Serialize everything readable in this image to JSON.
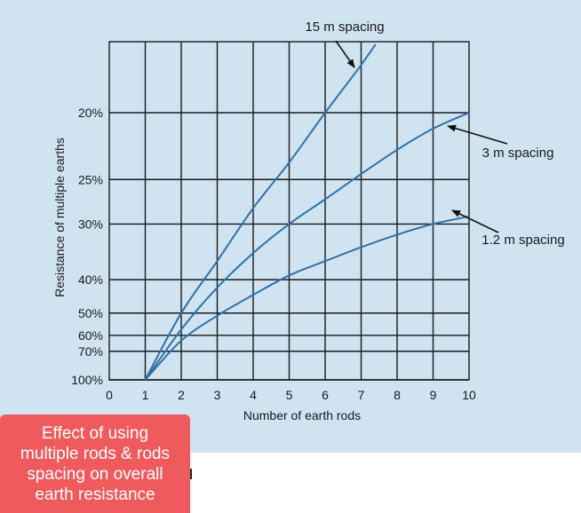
{
  "caption": "Effect of using\nmultiple rods & rods\nspacing on overall\nearth resistance",
  "colors": {
    "panel": "#cfe3f1",
    "curve": "#2f72a8",
    "grid": "#1a1a1a",
    "caption_bg": "#ef5a5c"
  },
  "chart_data": {
    "type": "line",
    "title": "",
    "xlabel": "Number of earth rods",
    "ylabel": "Resistance of multiple earths",
    "x_ticks": [
      "0",
      "1",
      "2",
      "3",
      "4",
      "5",
      "6",
      "7",
      "8",
      "9",
      "10"
    ],
    "xlim": [
      0,
      10
    ],
    "y_scale": "reciprocal",
    "y_ticks": [
      {
        "label": "20%",
        "value": 20
      },
      {
        "label": "25%",
        "value": 25
      },
      {
        "label": "30%",
        "value": 30
      },
      {
        "label": "40%",
        "value": 40
      },
      {
        "label": "50%",
        "value": 50
      },
      {
        "label": "60%",
        "value": 60
      },
      {
        "label": "70%",
        "value": 70
      },
      {
        "label": "100%",
        "value": 100
      }
    ],
    "grid": true,
    "series": [
      {
        "name": "15 m spacing",
        "x": [
          1,
          2,
          3,
          4,
          5,
          6,
          7,
          7.4
        ],
        "y": [
          100,
          50,
          36,
          28,
          23.5,
          20,
          17.5,
          16.6
        ]
      },
      {
        "name": "3 m spacing",
        "x": [
          1,
          2,
          3,
          4,
          5,
          6,
          7,
          8,
          9,
          10
        ],
        "y": [
          100,
          57,
          42,
          34.5,
          30,
          27,
          24.5,
          22.5,
          21,
          20
        ]
      },
      {
        "name": "1.2 m spacing",
        "x": [
          1,
          2,
          3,
          4,
          5,
          6,
          7,
          8,
          9,
          10
        ],
        "y": [
          100,
          63,
          51,
          44,
          39,
          36,
          33.5,
          31.5,
          30,
          29
        ]
      }
    ],
    "annotations": [
      "15 m spacing",
      "3 m spacing",
      "1.2 m spacing"
    ]
  }
}
